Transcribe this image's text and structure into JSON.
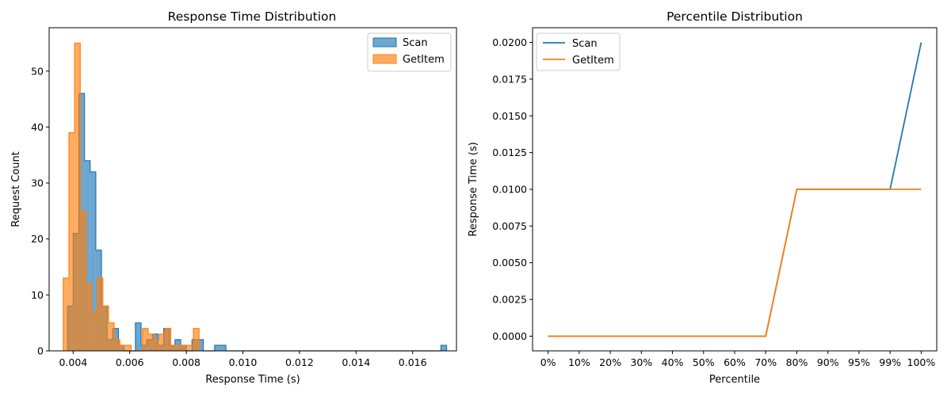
{
  "chart_data": [
    {
      "type": "histogram",
      "title": "Response Time Distribution",
      "xlabel": "Response Time (s)",
      "ylabel": "Request Count",
      "xlim": [
        0.00315,
        0.01755
      ],
      "ylim": [
        0,
        57.75
      ],
      "xticks": [
        0.004,
        0.006,
        0.008,
        0.01,
        0.012,
        0.014,
        0.016
      ],
      "xtick_labels": [
        "0.004",
        "0.006",
        "0.008",
        "0.010",
        "0.012",
        "0.014",
        "0.016"
      ],
      "yticks": [
        0,
        10,
        20,
        30,
        40,
        50
      ],
      "ytick_labels": [
        "0",
        "10",
        "20",
        "30",
        "40",
        "50"
      ],
      "legend_position": "upper right",
      "series": [
        {
          "name": "Scan",
          "color": "#1f77b4",
          "alpha": 0.65,
          "bin_start": 0.0038,
          "bin_width": 0.0002,
          "counts": [
            8,
            21,
            46,
            34,
            32,
            18,
            8,
            2,
            4,
            1,
            0,
            0,
            5,
            1,
            2,
            3,
            1,
            4,
            1,
            2,
            1,
            0,
            2,
            2,
            0,
            0,
            1,
            1,
            0,
            0,
            0,
            0,
            0,
            0,
            0,
            0,
            0,
            0,
            0,
            0,
            0,
            0,
            0,
            0,
            0,
            0,
            0,
            0,
            0,
            0,
            0,
            0,
            0,
            0,
            0,
            0,
            0,
            0,
            0,
            0,
            0,
            0,
            0,
            0,
            0,
            0,
            1
          ]
        },
        {
          "name": "GetItem",
          "color": "#ff7f0e",
          "alpha": 0.65,
          "bin_start": 0.00365,
          "bin_width": 0.0002,
          "counts": [
            13,
            39,
            55,
            25,
            12,
            7,
            13,
            8,
            5,
            2,
            1,
            1,
            0,
            0,
            4,
            3,
            2,
            3,
            4,
            1,
            1,
            1,
            1,
            4
          ]
        }
      ]
    },
    {
      "type": "line",
      "title": "Percentile Distribution",
      "xlabel": "Percentile",
      "ylabel": "Response Time (s)",
      "categories": [
        "0%",
        "10%",
        "20%",
        "30%",
        "40%",
        "50%",
        "60%",
        "70%",
        "80%",
        "90%",
        "95%",
        "99%",
        "100%"
      ],
      "ylim": [
        -0.001,
        0.021
      ],
      "yticks": [
        0.0,
        0.0025,
        0.005,
        0.0075,
        0.01,
        0.0125,
        0.015,
        0.0175,
        0.02
      ],
      "ytick_labels": [
        "0.0000",
        "0.0025",
        "0.0050",
        "0.0075",
        "0.0100",
        "0.0125",
        "0.0150",
        "0.0175",
        "0.0200"
      ],
      "legend_position": "upper left",
      "series": [
        {
          "name": "Scan",
          "color": "#1f77b4",
          "values": [
            0,
            0,
            0,
            0,
            0,
            0,
            0,
            0,
            0.01,
            0.01,
            0.01,
            0.01,
            0.02
          ]
        },
        {
          "name": "GetItem",
          "color": "#ff7f0e",
          "values": [
            0,
            0,
            0,
            0,
            0,
            0,
            0,
            0,
            0.01,
            0.01,
            0.01,
            0.01,
            0.01
          ]
        }
      ]
    }
  ]
}
